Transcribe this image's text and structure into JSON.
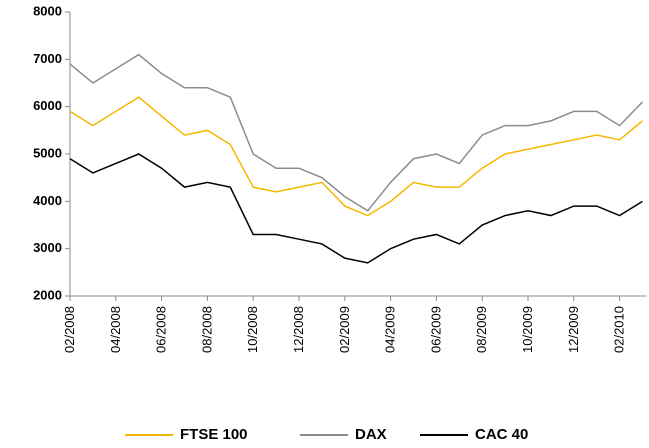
{
  "chart_data": {
    "type": "line",
    "categories": [
      "02/2008",
      null,
      "04/2008",
      null,
      "06/2008",
      null,
      "08/2008",
      null,
      "10/2008",
      null,
      "12/2008",
      null,
      "02/2009",
      null,
      "04/2009",
      null,
      "06/2009",
      null,
      "08/2009",
      null,
      "10/2009",
      null,
      "12/2009",
      null,
      "02/2010",
      null
    ],
    "series": [
      {
        "name": "FTSE 100",
        "color": "#f5b800",
        "values": [
          5900,
          5600,
          5900,
          6200,
          5800,
          5400,
          5500,
          5200,
          4300,
          4200,
          4300,
          4400,
          3900,
          3700,
          4000,
          4400,
          4300,
          4300,
          4700,
          5000,
          5100,
          5200,
          5300,
          5400,
          5300,
          5700
        ]
      },
      {
        "name": "DAX",
        "color": "#8c8c8c",
        "values": [
          6900,
          6500,
          6800,
          7100,
          6700,
          6400,
          6400,
          6200,
          5000,
          4700,
          4700,
          4500,
          4100,
          3800,
          4400,
          4900,
          5000,
          4800,
          5400,
          5600,
          5600,
          5700,
          5900,
          5900,
          5600,
          6100
        ]
      },
      {
        "name": "CAC 40",
        "color": "#000000",
        "values": [
          4900,
          4600,
          4800,
          5000,
          4700,
          4300,
          4400,
          4300,
          3300,
          3300,
          3200,
          3100,
          2800,
          2700,
          3000,
          3200,
          3300,
          3100,
          3500,
          3700,
          3800,
          3700,
          3900,
          3900,
          3700,
          4000
        ]
      }
    ],
    "ylim": [
      2000,
      8000
    ],
    "yticks": [
      2000,
      3000,
      4000,
      5000,
      6000,
      7000,
      8000
    ],
    "legend": "bottom"
  }
}
